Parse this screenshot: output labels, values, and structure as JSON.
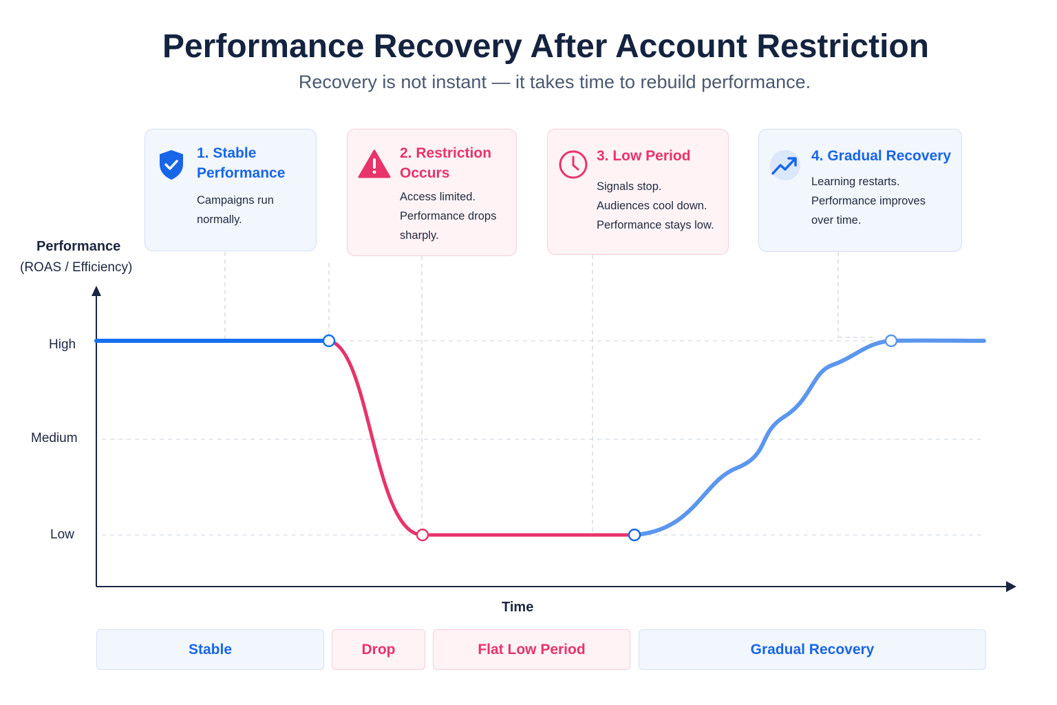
{
  "title": "Performance Recovery After Account Restriction",
  "subtitle": "Recovery is not instant — it takes time to rebuild performance.",
  "cards": [
    {
      "icon": "shield-check-icon",
      "title1": "1. Stable",
      "title2": "Performance",
      "lines": [
        "Campaigns run",
        "normally."
      ],
      "color": "#1766e8"
    },
    {
      "icon": "warning-triangle-icon",
      "title1": "2. Restriction",
      "title2": "Occurs",
      "lines": [
        "Access limited.",
        "Performance drops",
        "sharply."
      ],
      "color": "#e8336b"
    },
    {
      "icon": "clock-icon",
      "title1": "3. Low Period",
      "lines": [
        "Signals stop.",
        "Audiences cool down.",
        "Performance stays low."
      ],
      "color": "#e8336b"
    },
    {
      "icon": "trend-up-icon",
      "title1": "4. Gradual Recovery",
      "lines": [
        "Learning restarts.",
        "Performance improves",
        "over time."
      ],
      "color": "#1766e8"
    }
  ],
  "chart_data": {
    "type": "line",
    "ylabel": "Performance",
    "ylabel_sub": "(ROAS / Efficiency)",
    "xlabel": "Time",
    "y_ticks": [
      "High",
      "Medium",
      "Low"
    ],
    "grid": "dashed horizontal",
    "key_points": [
      {
        "phase": "Stable",
        "level": "High"
      },
      {
        "phase": "Restriction start",
        "level": "High"
      },
      {
        "phase": "Drop end",
        "level": "Low"
      },
      {
        "phase": "Low period end",
        "level": "Low"
      },
      {
        "phase": "Recovery",
        "level": "High"
      },
      {
        "phase": "End",
        "level": "High"
      }
    ],
    "colors": {
      "stable": "#1470ef",
      "drop": "#e8336b",
      "recovery": "#5b96ee"
    }
  },
  "phases": [
    {
      "label": "Stable"
    },
    {
      "label": "Drop"
    },
    {
      "label": "Flat Low Period"
    },
    {
      "label": "Gradual Recovery"
    }
  ]
}
